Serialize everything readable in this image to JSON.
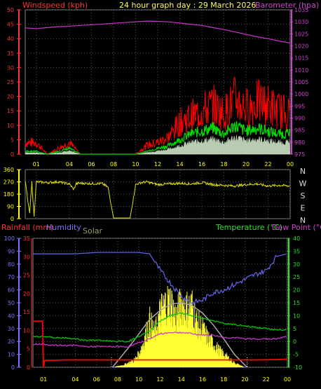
{
  "header": {
    "windspeed_label": "Windspeed (kph)",
    "title": "24 hour graph day : 29 March 2026",
    "barometer_label": "Barometer (hpa)"
  },
  "bottom_header": {
    "rainfall_label": "Rainfall (mm)",
    "humidity_label": "Humidity",
    "solar_label": "Solar",
    "temperature_label": "Temperature (°C)",
    "dewpoint_label": "Dew Point (°C)"
  },
  "colors": {
    "windspeed": "#ff0000",
    "windavg": "#00dd00",
    "gust_fill": "#d8f0d0",
    "barometer": "#cc33cc",
    "direction": "#dddd00",
    "rain": "#ff0000",
    "humidity": "#6666ee",
    "solar": "#ffff33",
    "solar_max": "#aaaaaa",
    "temperature": "#00cc00",
    "dewpoint": "#cc33cc",
    "grid": "#555555"
  },
  "chart_data": [
    {
      "id": "wind_pressure",
      "type": "line",
      "title": "24 hour graph day : 29 March 2026",
      "x_ticks": [
        "01",
        "04",
        "06",
        "08",
        "10",
        "12",
        "14",
        "16",
        "18",
        "20",
        "22",
        "00"
      ],
      "left_axis": {
        "label": "Windspeed (kph)",
        "ylim": [
          0,
          50
        ],
        "ticks": [
          0,
          5,
          10,
          15,
          20,
          25,
          30,
          35,
          40,
          45,
          50
        ]
      },
      "right_axis": {
        "label": "Barometer (hpa)",
        "ylim": [
          975,
          1035
        ],
        "ticks": [
          975,
          980,
          985,
          990,
          995,
          1000,
          1005,
          1010,
          1015,
          1020,
          1025,
          1030,
          1035
        ]
      },
      "series": [
        {
          "name": "Barometer",
          "axis": "right",
          "x": [
            0,
            1,
            2,
            3,
            4,
            5,
            6,
            7,
            8,
            9,
            10,
            11,
            12,
            13,
            14,
            15,
            16,
            17,
            18,
            19,
            20,
            21,
            22,
            23,
            24
          ],
          "y": [
            1027.5,
            1027.2,
            1027.6,
            1028.0,
            1028.2,
            1028.5,
            1028.8,
            1029.1,
            1029.4,
            1029.7,
            1030.0,
            1030.3,
            1030.2,
            1030.0,
            1029.5,
            1029.0,
            1028.5,
            1027.6,
            1026.8,
            1025.8,
            1024.8,
            1023.8,
            1023.0,
            1022.0,
            1021.2
          ]
        },
        {
          "name": "Windspeed",
          "axis": "left",
          "x": [
            0,
            1,
            2,
            3,
            4,
            5,
            6,
            7,
            8,
            9,
            10,
            11,
            12,
            13,
            14,
            15,
            16,
            17,
            18,
            19,
            20,
            21,
            22,
            23,
            24
          ],
          "y": [
            4,
            4,
            0,
            2,
            4,
            0,
            0,
            0,
            0,
            0,
            0,
            3,
            4,
            6,
            11,
            13,
            15,
            17,
            14,
            19,
            16,
            18,
            17,
            15,
            14
          ]
        },
        {
          "name": "Wind Avg",
          "axis": "left",
          "x": [
            0,
            1,
            2,
            3,
            4,
            5,
            6,
            7,
            8,
            9,
            10,
            11,
            12,
            13,
            14,
            15,
            16,
            17,
            18,
            19,
            20,
            21,
            22,
            23,
            24
          ],
          "y": [
            1,
            1,
            0,
            1,
            2,
            0,
            0,
            0,
            0,
            0,
            0,
            1,
            2,
            3,
            5,
            7,
            8,
            9,
            7,
            10,
            8,
            9,
            8,
            7,
            7
          ]
        }
      ]
    },
    {
      "id": "wind_direction",
      "type": "line",
      "x_ticks": [
        "01",
        "04",
        "06",
        "08",
        "10",
        "12",
        "14",
        "16",
        "18",
        "20",
        "22",
        "00"
      ],
      "left_axis": {
        "ylim": [
          0,
          360
        ],
        "ticks": [
          0,
          90,
          180,
          270,
          360
        ]
      },
      "right_labels": [
        "N",
        "W",
        "S",
        "E",
        "N"
      ],
      "series": [
        {
          "name": "Direction",
          "x": [
            0,
            0.4,
            0.6,
            0.8,
            1,
            2,
            3,
            4,
            4.4,
            4.6,
            4.8,
            5,
            6,
            7,
            7.5,
            8,
            9,
            9.5,
            10,
            10.5,
            11,
            12,
            13,
            14,
            15,
            16,
            17,
            18,
            19,
            20,
            21,
            22,
            23,
            24
          ],
          "y": [
            275,
            40,
            270,
            15,
            270,
            265,
            270,
            255,
            215,
            255,
            260,
            260,
            258,
            257,
            230,
            5,
            5,
            5,
            250,
            265,
            270,
            250,
            255,
            260,
            255,
            265,
            250,
            245,
            240,
            250,
            255,
            240,
            245,
            240
          ]
        }
      ]
    },
    {
      "id": "temp_humidity_solar",
      "type": "line",
      "x_ticks": [
        "01",
        "04",
        "06",
        "08",
        "10",
        "12",
        "14",
        "16",
        "18",
        "20",
        "22",
        "00"
      ],
      "humidity_axis": {
        "label": "Humidity",
        "ylim": [
          0,
          100
        ],
        "ticks": [
          0,
          10,
          20,
          30,
          40,
          50,
          60,
          70,
          80,
          90,
          100
        ]
      },
      "rain_axis": {
        "label": "Rainfall (mm)",
        "ylim": [
          0,
          35
        ],
        "ticks": [
          0,
          5,
          10,
          15,
          20,
          25,
          30,
          35
        ]
      },
      "temp_axis": {
        "label": "Temperature (°C)",
        "ylim": [
          -10,
          40
        ],
        "ticks": [
          -10,
          -5,
          0,
          5,
          10,
          15,
          20,
          25,
          30,
          35,
          40
        ]
      },
      "series": [
        {
          "name": "Humidity",
          "x": [
            0,
            2,
            4,
            6,
            8,
            9,
            10,
            11,
            12,
            13,
            14,
            15,
            16,
            17,
            18,
            19,
            20,
            21,
            22,
            23,
            24
          ],
          "y": [
            88,
            88,
            88,
            89,
            89,
            89,
            89,
            88,
            75,
            65,
            55,
            50,
            52,
            58,
            60,
            64,
            68,
            72,
            75,
            86,
            88
          ]
        },
        {
          "name": "Rainfall",
          "x": [
            0,
            0.9,
            1.0,
            1.1,
            3,
            5,
            7,
            9,
            11,
            13,
            15,
            17,
            19,
            21,
            23,
            24
          ],
          "y": [
            12.5,
            12.5,
            0,
            1.8,
            2.0,
            2.0,
            2.0,
            2.0,
            2.0,
            2.0,
            2.0,
            2.0,
            2.0,
            2.0,
            2.1,
            2.2
          ]
        },
        {
          "name": "Temperature",
          "x": [
            0,
            1,
            2,
            3,
            4,
            5,
            6,
            7,
            8,
            9,
            10,
            11,
            12,
            13,
            14,
            15,
            16,
            17,
            18,
            19,
            20,
            21,
            22,
            23,
            24
          ],
          "y": [
            2,
            2,
            1.5,
            1.5,
            1,
            0.5,
            0.5,
            0.3,
            0,
            0,
            2,
            4,
            8,
            10,
            11,
            10,
            9,
            8,
            7,
            6.5,
            6,
            5.5,
            5,
            4.5,
            4.5
          ]
        },
        {
          "name": "Dew Point",
          "x": [
            0,
            1,
            2,
            3,
            4,
            5,
            6,
            7,
            8,
            9,
            10,
            11,
            12,
            13,
            14,
            15,
            16,
            17,
            18,
            19,
            20,
            21,
            22,
            23,
            24
          ],
          "y": [
            -1,
            -1,
            -1.5,
            -1.5,
            -1.5,
            -2,
            -2,
            -2,
            -2,
            -2,
            -0.5,
            1,
            3,
            3.5,
            3.5,
            3,
            2.5,
            2.5,
            1.5,
            1.5,
            1,
            1,
            1,
            1,
            2
          ]
        },
        {
          "name": "Solar Max",
          "x": [
            7.5,
            9,
            10,
            11,
            12,
            13,
            14,
            15,
            16,
            17,
            18,
            19,
            20.2
          ],
          "y": [
            0,
            150,
            260,
            370,
            440,
            490,
            500,
            480,
            420,
            330,
            220,
            100,
            0
          ]
        },
        {
          "name": "Solar",
          "x": [
            7.5,
            8.5,
            9.5,
            10,
            10.5,
            11,
            11.5,
            12,
            12.5,
            13,
            13.5,
            14,
            14.5,
            15,
            15.5,
            16,
            16.5,
            17,
            17.5,
            18,
            18.5,
            19,
            19.5,
            20
          ],
          "y": [
            0,
            20,
            60,
            120,
            250,
            420,
            300,
            500,
            580,
            600,
            450,
            580,
            530,
            560,
            400,
            350,
            260,
            220,
            160,
            120,
            80,
            40,
            20,
            0
          ]
        }
      ]
    }
  ]
}
